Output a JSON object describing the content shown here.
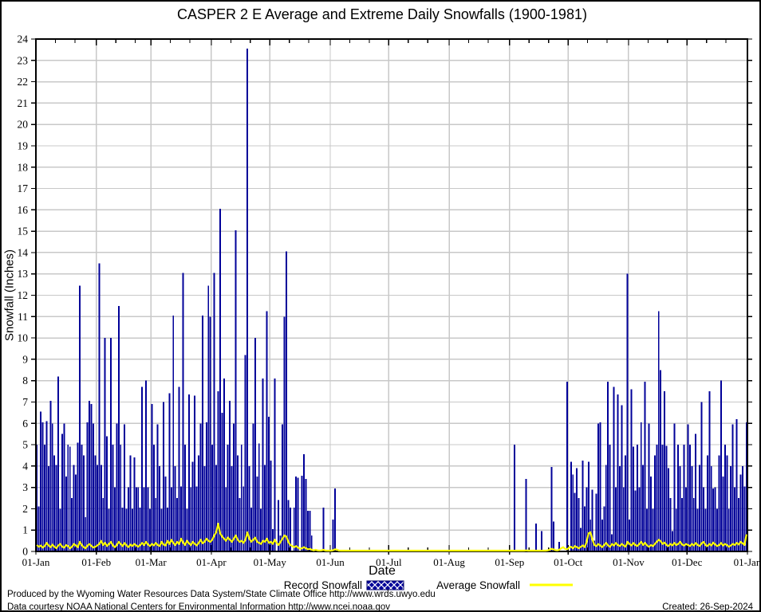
{
  "page": {
    "footer_line1": "Produced by the Wyoming Water Resources Data System/State Climate Office http://www.wrds.uwyo.edu",
    "footer_line2": "Data courtesy NOAA National Centers for Environmental Information http://www.ncei.noaa.gov",
    "created": "Created: 26-Sep-2024"
  },
  "chart_data": {
    "type": "bar",
    "title": "CASPER 2 E Average and Extreme Daily Snowfalls (1900-1981)",
    "xlabel": "Date",
    "ylabel": "Snowfall (Inches)",
    "ylim": [
      0,
      24
    ],
    "y_tick_step": 1,
    "grid": true,
    "legend_position": "below",
    "x_tick_labels": [
      "01-Jan",
      "01-Feb",
      "01-Mar",
      "01-Apr",
      "01-May",
      "01-Jun",
      "01-Jul",
      "01-Aug",
      "01-Sep",
      "01-Oct",
      "01-Nov",
      "01-Dec",
      "01-Jan"
    ],
    "month_start_days": [
      0,
      31,
      59,
      90,
      120,
      151,
      181,
      212,
      243,
      273,
      304,
      334,
      365
    ],
    "colors": {
      "record_bar": "#000099",
      "average_line": "#ffff00",
      "grid": "#c8c8c8",
      "frame": "#000000"
    },
    "series": [
      {
        "name": "Record Snowfall",
        "type": "bar",
        "color": "#000099",
        "values": [
          5.0,
          2.1,
          6.55,
          6.05,
          5.0,
          6.1,
          4.0,
          7.05,
          6.0,
          4.5,
          4.05,
          8.2,
          2.0,
          5.5,
          6.0,
          3.5,
          5.0,
          4.9,
          2.5,
          4.05,
          3.6,
          5.1,
          12.45,
          5.0,
          4.5,
          1.6,
          6.05,
          7.05,
          6.9,
          6.0,
          4.5,
          4.05,
          13.5,
          4.05,
          2.5,
          10.0,
          5.4,
          2.0,
          10.0,
          5.0,
          3.0,
          6.0,
          11.5,
          5.0,
          2.05,
          5.95,
          2.0,
          3.0,
          4.5,
          2.0,
          4.4,
          3.0,
          3.0,
          2.05,
          7.7,
          3.0,
          8.0,
          3.0,
          2.0,
          6.9,
          5.0,
          2.5,
          5.95,
          4.0,
          2.0,
          7.0,
          3.5,
          2.05,
          7.4,
          3.0,
          11.05,
          4.0,
          2.5,
          7.7,
          3.05,
          13.05,
          5.0,
          2.0,
          7.35,
          3.0,
          4.2,
          7.3,
          3.05,
          4.5,
          6.0,
          11.05,
          4.0,
          6.05,
          12.45,
          11.0,
          5.0,
          13.05,
          4.05,
          7.5,
          16.05,
          6.5,
          8.1,
          3.0,
          5.0,
          7.05,
          4.0,
          6.0,
          15.05,
          4.5,
          2.5,
          5.0,
          3.05,
          9.2,
          23.55,
          4.0,
          2.05,
          6.0,
          10.0,
          3.5,
          5.05,
          2.0,
          8.1,
          4.05,
          11.25,
          6.3,
          4.25,
          1.05,
          8.1,
          0,
          2.4,
          0.75,
          5.95,
          11.0,
          14.05,
          2.4,
          2.05,
          0,
          2.05,
          3.5,
          3.45,
          0,
          3.55,
          4.55,
          3.4,
          1.9,
          1.9,
          0.75,
          0,
          0,
          0,
          0,
          0,
          2.05,
          0,
          0,
          0,
          0,
          1.5,
          2.95,
          0,
          0,
          0,
          0,
          0,
          0,
          0,
          0,
          0,
          0,
          0,
          0,
          0,
          0,
          0,
          0,
          0,
          0,
          0,
          0,
          0,
          0,
          0,
          0,
          0,
          0,
          0,
          0,
          0,
          0,
          0,
          0,
          0,
          0,
          0,
          0,
          0,
          0,
          0,
          0,
          0,
          0,
          0,
          0,
          0,
          0,
          0,
          0,
          0,
          0,
          0,
          0,
          0,
          0,
          0,
          0,
          0,
          0,
          0,
          0,
          0,
          0,
          0,
          0,
          0,
          0,
          0,
          0,
          0,
          0,
          0,
          0,
          0,
          0,
          0,
          0,
          0,
          0,
          0,
          0,
          0,
          0,
          0,
          0,
          0,
          0,
          0,
          0,
          0,
          0,
          0,
          5.0,
          0,
          0,
          0,
          0,
          0,
          3.4,
          0,
          0,
          0,
          0,
          1.3,
          0,
          0,
          0.95,
          0,
          0,
          0,
          0,
          3.95,
          1.4,
          0,
          0,
          0.45,
          0,
          0,
          0,
          7.95,
          0,
          4.2,
          3.6,
          2.75,
          3.9,
          2.5,
          1.1,
          4.25,
          2.1,
          3.0,
          4.2,
          1.5,
          2.9,
          0.5,
          2.7,
          6.0,
          6.05,
          1.5,
          2.1,
          4.05,
          7.95,
          5.0,
          0.8,
          7.7,
          3.0,
          7.35,
          4.0,
          6.85,
          3.0,
          4.5,
          13.0,
          1.5,
          7.6,
          4.9,
          2.85,
          5.0,
          3.0,
          6.05,
          4.05,
          7.95,
          2.0,
          6.0,
          3.5,
          2.0,
          4.5,
          5.0,
          11.25,
          8.5,
          5.0,
          7.5,
          4.95,
          3.9,
          2.5,
          0.95,
          6.0,
          2.0,
          5.0,
          4.0,
          2.5,
          5.0,
          3.0,
          5.95,
          5.0,
          4.0,
          2.5,
          5.5,
          2.0,
          4.05,
          7.0,
          3.0,
          2.0,
          4.5,
          7.5,
          4.0,
          2.95,
          3.0,
          2.0,
          4.5,
          8.0,
          3.5,
          5.0,
          4.5,
          2.0,
          4.0,
          5.95,
          3.0,
          6.2,
          2.5,
          3.6,
          4.0,
          3.05,
          6.05
        ]
      },
      {
        "name": "Average Snowfall",
        "type": "line",
        "color": "#ffff00",
        "values": [
          0.3,
          0.22,
          0.28,
          0.18,
          0.25,
          0.4,
          0.28,
          0.2,
          0.32,
          0.22,
          0.15,
          0.28,
          0.35,
          0.22,
          0.18,
          0.3,
          0.25,
          0.15,
          0.22,
          0.35,
          0.28,
          0.2,
          0.45,
          0.3,
          0.2,
          0.15,
          0.28,
          0.35,
          0.25,
          0.18,
          0.22,
          0.28,
          0.35,
          0.5,
          0.3,
          0.4,
          0.25,
          0.35,
          0.45,
          0.28,
          0.2,
          0.3,
          0.45,
          0.35,
          0.25,
          0.4,
          0.28,
          0.2,
          0.32,
          0.25,
          0.35,
          0.28,
          0.22,
          0.3,
          0.4,
          0.3,
          0.45,
          0.32,
          0.25,
          0.35,
          0.28,
          0.4,
          0.3,
          0.25,
          0.45,
          0.32,
          0.28,
          0.5,
          0.35,
          0.55,
          0.4,
          0.3,
          0.45,
          0.35,
          0.6,
          0.42,
          0.3,
          0.5,
          0.38,
          0.3,
          0.45,
          0.35,
          0.28,
          0.4,
          0.55,
          0.38,
          0.45,
          0.6,
          0.5,
          0.45,
          0.55,
          0.75,
          0.9,
          1.3,
          0.85,
          0.7,
          0.6,
          0.5,
          0.65,
          0.55,
          0.45,
          0.6,
          0.75,
          0.55,
          0.45,
          0.5,
          0.4,
          0.55,
          0.9,
          0.6,
          0.45,
          0.55,
          0.65,
          0.45,
          0.4,
          0.35,
          0.5,
          0.45,
          0.6,
          0.4,
          0.45,
          0.35,
          0.55,
          0.4,
          0.3,
          0.45,
          0.6,
          0.75,
          0.7,
          0.45,
          0.3,
          0.25,
          0.2,
          0.25,
          0.18,
          0.12,
          0.15,
          0.2,
          0.15,
          0.1,
          0.12,
          0.08,
          0.05,
          0.08,
          0.05,
          0.04,
          0.05,
          0.08,
          0.04,
          0.03,
          0.03,
          0.04,
          0.06,
          0.1,
          0.08,
          0.04,
          0.02,
          0.02,
          0.01,
          0.02,
          0.01,
          0.01,
          0,
          0.01,
          0,
          0,
          0.01,
          0,
          0,
          0,
          0.01,
          0,
          0,
          0,
          0,
          0,
          0,
          0,
          0.01,
          0,
          0,
          0,
          0,
          0,
          0,
          0,
          0,
          0,
          0,
          0,
          0,
          0,
          0,
          0,
          0,
          0,
          0,
          0,
          0,
          0,
          0,
          0,
          0,
          0,
          0,
          0,
          0,
          0,
          0,
          0,
          0,
          0,
          0,
          0,
          0,
          0,
          0,
          0,
          0,
          0,
          0,
          0,
          0,
          0,
          0,
          0,
          0,
          0,
          0,
          0,
          0,
          0,
          0,
          0,
          0,
          0,
          0,
          0,
          0,
          0,
          0,
          0,
          0,
          0,
          0,
          0.02,
          0.03,
          0.02,
          0.01,
          0.02,
          0.03,
          0.05,
          0.03,
          0.02,
          0.01,
          0.02,
          0.04,
          0.03,
          0.02,
          0.04,
          0.03,
          0.02,
          0.05,
          0.08,
          0.12,
          0.1,
          0.06,
          0.05,
          0.08,
          0.15,
          0.2,
          0.12,
          0.1,
          0.18,
          0.22,
          0.15,
          0.25,
          0.2,
          0.15,
          0.22,
          0.28,
          0.2,
          0.45,
          0.85,
          0.9,
          0.55,
          0.3,
          0.25,
          0.35,
          0.28,
          0.2,
          0.3,
          0.4,
          0.28,
          0.22,
          0.35,
          0.28,
          0.4,
          0.3,
          0.25,
          0.35,
          0.28,
          0.22,
          0.45,
          0.35,
          0.28,
          0.4,
          0.3,
          0.25,
          0.35,
          0.45,
          0.3,
          0.4,
          0.28,
          0.22,
          0.3,
          0.25,
          0.35,
          0.45,
          0.55,
          0.48,
          0.35,
          0.42,
          0.3,
          0.25,
          0.35,
          0.28,
          0.4,
          0.3,
          0.35,
          0.45,
          0.32,
          0.28,
          0.35,
          0.3,
          0.25,
          0.35,
          0.28,
          0.4,
          0.3,
          0.25,
          0.38,
          0.45,
          0.3,
          0.25,
          0.35,
          0.28,
          0.42,
          0.32,
          0.25,
          0.3,
          0.4,
          0.28,
          0.35,
          0.3,
          0.22,
          0.28,
          0.35,
          0.3,
          0.4,
          0.32,
          0.45,
          0.38,
          0.3,
          0.8
        ]
      }
    ]
  }
}
